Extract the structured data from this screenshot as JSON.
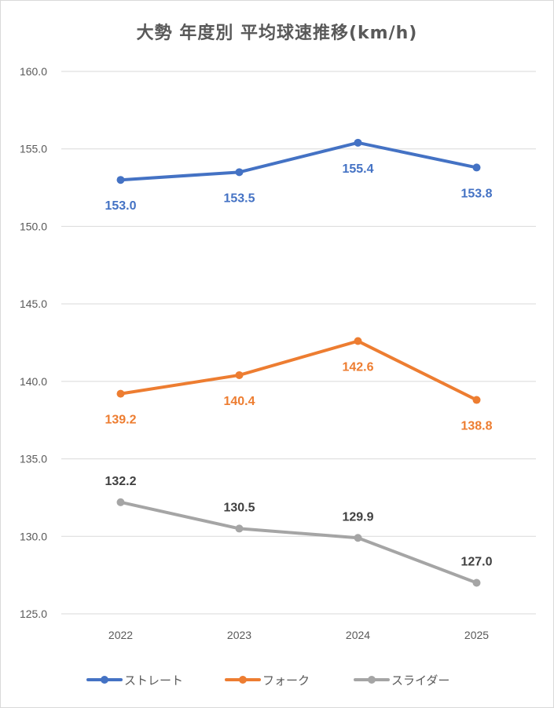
{
  "chart_data": {
    "type": "line",
    "title": "大勢 年度別 平均球速推移(km/h)",
    "xlabel": "",
    "ylabel": "",
    "categories": [
      "2022",
      "2023",
      "2024",
      "2025"
    ],
    "ylim": [
      125,
      160
    ],
    "y_ticks": [
      "125.0",
      "130.0",
      "135.0",
      "140.0",
      "145.0",
      "150.0",
      "155.0",
      "160.0"
    ],
    "grid": true,
    "legend_position": "bottom",
    "series": [
      {
        "name": "ストレート",
        "color": "#4472c4",
        "values": [
          153.0,
          153.5,
          155.4,
          153.8
        ],
        "labels": [
          "153.0",
          "153.5",
          "155.4",
          "153.8"
        ],
        "label_position": "below"
      },
      {
        "name": "フォーク",
        "color": "#ed7d31",
        "values": [
          139.2,
          140.4,
          142.6,
          138.8
        ],
        "labels": [
          "139.2",
          "140.4",
          "142.6",
          "138.8"
        ],
        "label_position": "below"
      },
      {
        "name": "スライダー",
        "color": "#a5a5a5",
        "label_color": "#404040",
        "values": [
          132.2,
          130.5,
          129.9,
          127.0
        ],
        "labels": [
          "132.2",
          "130.5",
          "129.9",
          "127.0"
        ],
        "label_position": "above"
      }
    ]
  }
}
